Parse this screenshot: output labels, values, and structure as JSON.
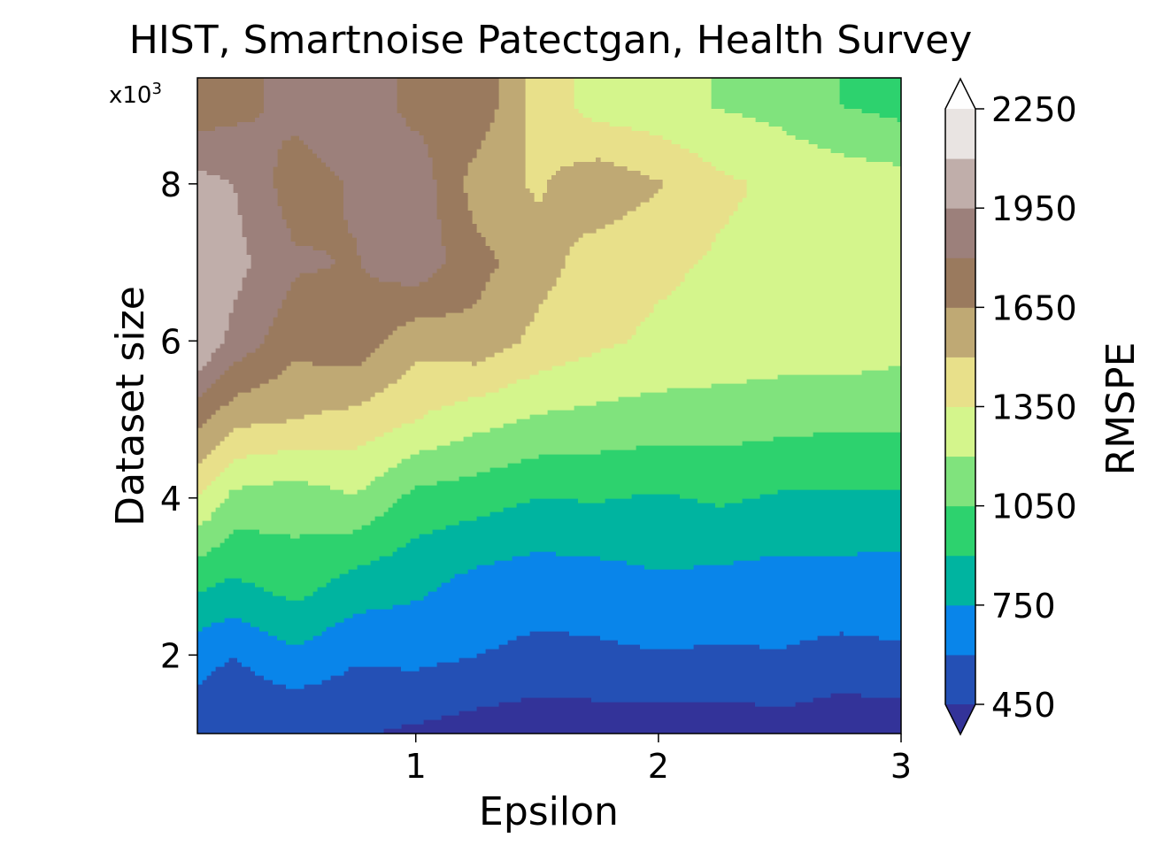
{
  "chart_data": {
    "type": "contourf",
    "title": "HIST, Smartnoise Patectgan, Health Survey",
    "xlabel": "Epsilon",
    "ylabel": "Dataset size",
    "y_scale_note": "x10",
    "y_scale_exp": "3",
    "xlim": [
      0.1,
      3.0
    ],
    "ylim": [
      1000,
      9350
    ],
    "x_ticks": [
      1,
      2,
      3
    ],
    "y_ticks": [
      2,
      4,
      6,
      8
    ],
    "colorbar": {
      "label": "RMSPE",
      "ticks": [
        450,
        750,
        1050,
        1350,
        1650,
        1950,
        2250
      ],
      "levels": [
        450,
        600,
        750,
        900,
        1050,
        1200,
        1350,
        1500,
        1650,
        1800,
        1950,
        2100,
        2250
      ],
      "extend": "both",
      "colors": [
        "#333399",
        "#2450b5",
        "#0985ea",
        "#00b4a0",
        "#2dd26e",
        "#80e37d",
        "#d4f58c",
        "#e8e08a",
        "#bfa974",
        "#9a7a5e",
        "#9c807b",
        "#c0aeaa",
        "#e9e4e2",
        "#fefefe"
      ]
    },
    "x": [
      0.1,
      0.25,
      0.5,
      0.75,
      1.0,
      1.25,
      1.5,
      1.75,
      2.0,
      2.25,
      2.5,
      2.75,
      3.0
    ],
    "y": [
      1000,
      2000,
      3000,
      4000,
      5000,
      6000,
      7000,
      8000,
      9000
    ],
    "z": [
      [
        520,
        450,
        440,
        460,
        420,
        380,
        350,
        360,
        360,
        350,
        380,
        330,
        350
      ],
      [
        650,
        600,
        720,
        620,
        640,
        600,
        560,
        570,
        590,
        580,
        590,
        560,
        580
      ],
      [
        960,
        900,
        990,
        860,
        800,
        720,
        680,
        700,
        740,
        720,
        700,
        700,
        690
      ],
      [
        1350,
        1150,
        1110,
        1190,
        1000,
        960,
        900,
        910,
        880,
        920,
        880,
        880,
        870
      ],
      [
        1700,
        1540,
        1500,
        1450,
        1350,
        1250,
        1180,
        1150,
        1130,
        1120,
        1100,
        1080,
        1090
      ],
      [
        2100,
        1900,
        1700,
        1750,
        1550,
        1600,
        1460,
        1380,
        1320,
        1300,
        1280,
        1290,
        1250
      ],
      [
        2050,
        2000,
        1820,
        1790,
        1900,
        1700,
        1560,
        1430,
        1380,
        1330,
        1300,
        1290,
        1260
      ],
      [
        2000,
        1950,
        1720,
        1820,
        1900,
        1580,
        1480,
        1600,
        1510,
        1380,
        1320,
        1290,
        1260
      ],
      [
        1700,
        1750,
        1850,
        1900,
        1750,
        1750,
        1450,
        1280,
        1250,
        1190,
        1150,
        1050,
        1000
      ]
    ]
  }
}
